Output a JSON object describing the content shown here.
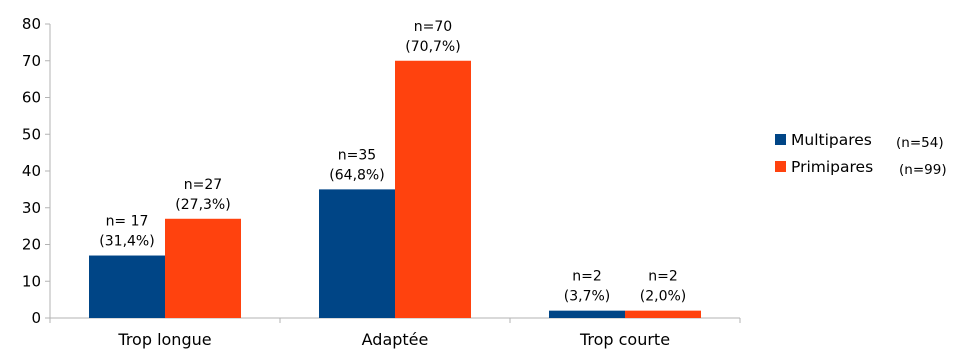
{
  "chart_data": {
    "type": "bar",
    "categories": [
      "Trop longue",
      "Adaptée",
      "Trop courte"
    ],
    "series": [
      {
        "name": "Multipares",
        "legend_suffix": "(n=54)",
        "color": "#004586",
        "values": [
          17,
          35,
          2
        ],
        "labels_top": [
          "n= 17",
          "n=35",
          "n=2"
        ],
        "labels_bottom": [
          "(31,4%)",
          "(64,8%)",
          "(3,7%)"
        ]
      },
      {
        "name": "Primipares",
        "legend_suffix": "(n=99)",
        "color": "#ff420e",
        "values": [
          27,
          70,
          2
        ],
        "labels_top": [
          "n=27",
          "n=70",
          "n=2"
        ],
        "labels_bottom": [
          "(27,3%)",
          "(70,7%)",
          "(2,0%)"
        ]
      }
    ],
    "yticks": [
      "0",
      "10",
      "20",
      "30",
      "40",
      "50",
      "60",
      "70",
      "80"
    ],
    "ylim": [
      0,
      80
    ],
    "grid": false,
    "legend_position": "right"
  }
}
